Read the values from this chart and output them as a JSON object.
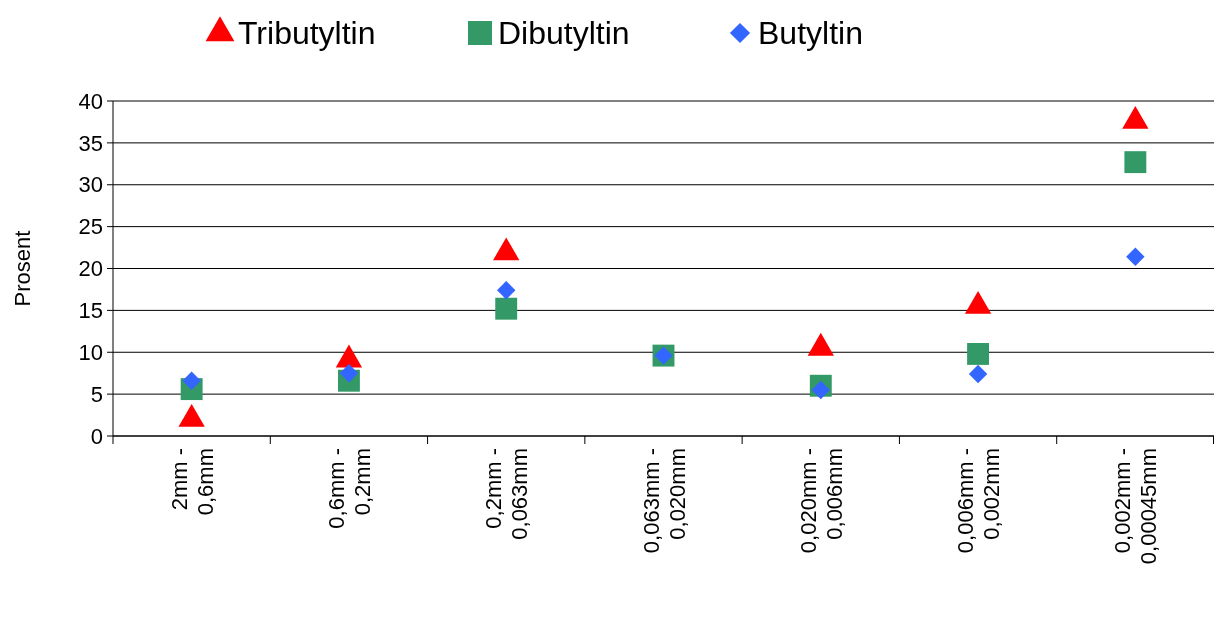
{
  "chart_data": {
    "type": "scatter",
    "ylabel": "Prosent",
    "categories": [
      "2mm - 0,6mm",
      "0,6mm - 0,2mm",
      "0,2mm - 0,063mm",
      "0,063mm - 0,020mm",
      "0,020mm - 0,006mm",
      "0,006mm - 0,002mm",
      "0,002mm - 0,00045mm"
    ],
    "series": [
      {
        "name": "Tributyltin",
        "color": "#ff0000",
        "marker": "triangle",
        "values": [
          2.0,
          9.1,
          21.9,
          null,
          10.5,
          15.5,
          37.6
        ]
      },
      {
        "name": "Dibutyltin",
        "color": "#339966",
        "marker": "square",
        "values": [
          5.6,
          6.6,
          15.2,
          9.6,
          6.0,
          9.8,
          32.7
        ]
      },
      {
        "name": "Butyltin",
        "color": "#3366ff",
        "marker": "diamond",
        "values": [
          6.6,
          7.5,
          17.4,
          9.6,
          5.5,
          7.4,
          21.4
        ]
      }
    ],
    "ylim": [
      0,
      40
    ],
    "yticks": [
      0,
      5,
      10,
      15,
      20,
      25,
      30,
      35,
      40
    ],
    "grid": "y",
    "legend": "top"
  }
}
